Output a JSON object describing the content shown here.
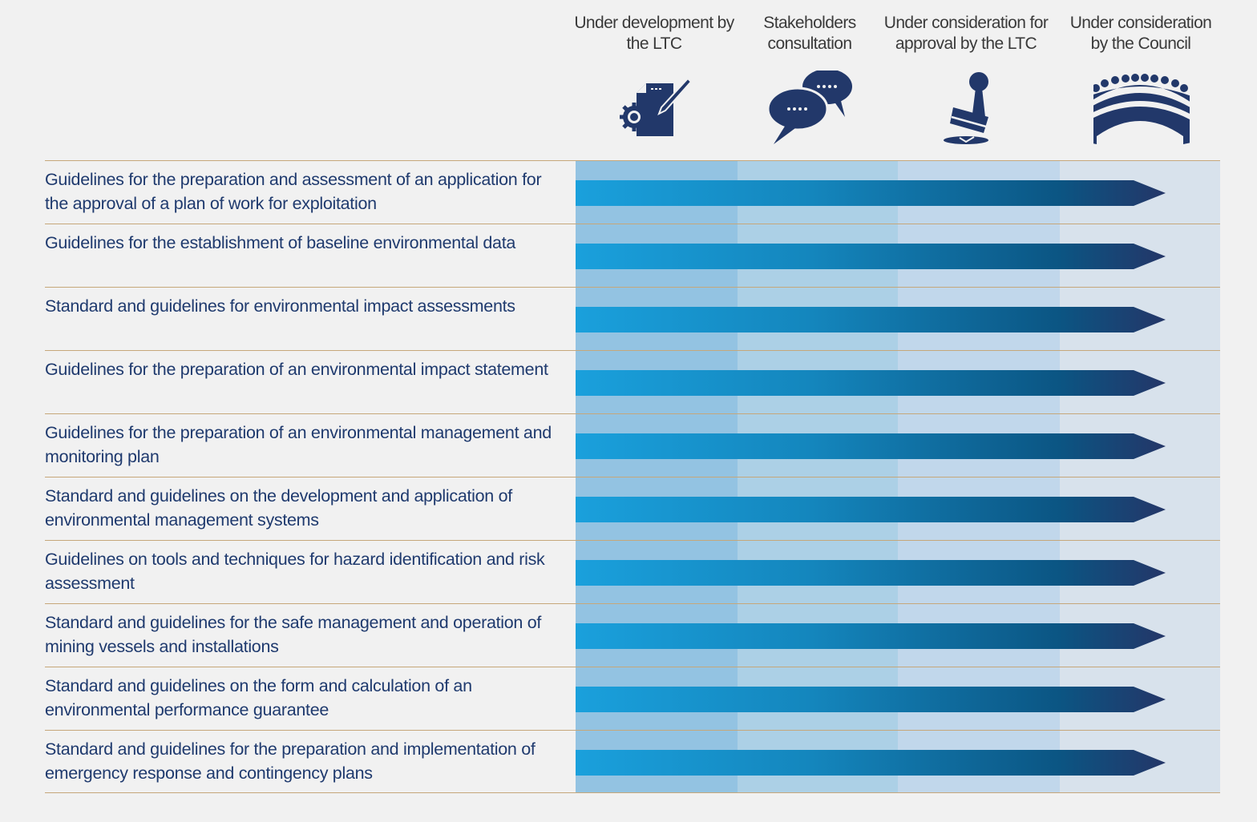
{
  "columns": [
    {
      "label": "Under development by the LTC",
      "icon": "document-gear-pen-icon",
      "band_color": "#93c3e2"
    },
    {
      "label": "Stakeholders consultation",
      "icon": "speech-bubbles-icon",
      "band_color": "#acd0e6"
    },
    {
      "label": "Under consideration for approval by the LTC",
      "icon": "stamp-icon",
      "band_color": "#c1d7eb"
    },
    {
      "label": "Under consideration by the Council",
      "icon": "council-assembly-icon",
      "band_color": "#d8e2ec"
    }
  ],
  "colors": {
    "text": "#1f3a6e",
    "icon": "#22386a",
    "divider": "#c6a77a",
    "arrow_start": "#1aa0dc",
    "arrow_mid": "#0b5583",
    "arrow_end": "#243668",
    "background": "#f1f1f1"
  },
  "rows": [
    {
      "label": "Guidelines for the preparation and assessment of an application for the approval of a plan of work for exploitation",
      "stage_reached": "Under consideration by the Council"
    },
    {
      "label": "Guidelines for the establishment of baseline environmental data",
      "stage_reached": "Under consideration by the Council"
    },
    {
      "label": "Standard and guidelines for environmental impact assessments",
      "stage_reached": "Under consideration by the Council"
    },
    {
      "label": "Guidelines for the preparation of an environmental impact statement",
      "stage_reached": "Under consideration by the Council"
    },
    {
      "label": "Guidelines for the preparation of an environmental management and monitoring plan",
      "stage_reached": "Under consideration by the Council"
    },
    {
      "label": "Standard and guidelines on the development and application of environmental management systems",
      "stage_reached": "Under consideration by the Council"
    },
    {
      "label": "Guidelines on tools and techniques for hazard identification and risk assessment",
      "stage_reached": "Under consideration by the Council"
    },
    {
      "label": "Standard and guidelines for the safe management and operation of mining vessels and installations",
      "stage_reached": "Under consideration by the Council"
    },
    {
      "label": "Standard and guidelines on the form and calculation of an environmental performance guarantee",
      "stage_reached": "Under consideration by the Council"
    },
    {
      "label": "Standard and guidelines for the preparation and implementation of emergency response and contingency plans",
      "stage_reached": "Under consideration by the Council"
    }
  ]
}
